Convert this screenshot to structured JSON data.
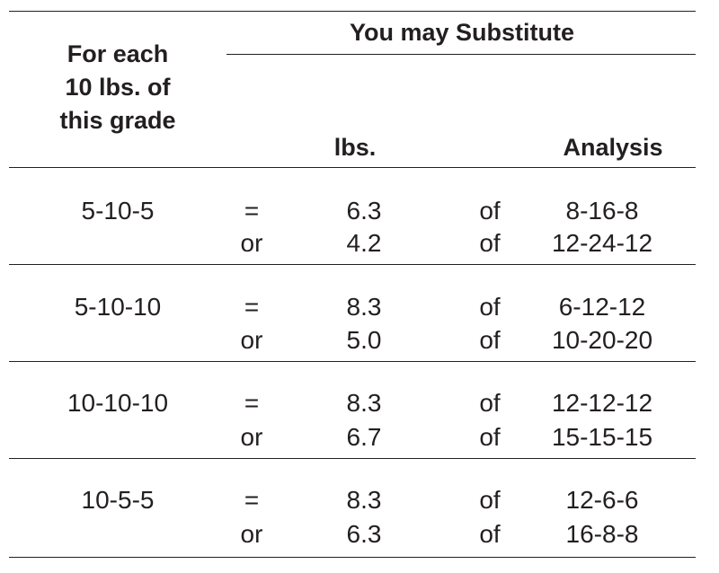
{
  "header": {
    "left_lines": [
      "For each",
      "10 lbs. of",
      "this grade"
    ],
    "substitute": "You may Substitute",
    "lbs": "lbs.",
    "analysis": "Analysis"
  },
  "rows": [
    {
      "grade": "5-10-5",
      "subs": [
        {
          "op": "=",
          "lbs": "6.3",
          "of": "of",
          "analysis": "8-16-8"
        },
        {
          "op": "or",
          "lbs": "4.2",
          "of": "of",
          "analysis": "12-24-12"
        }
      ]
    },
    {
      "grade": "5-10-10",
      "subs": [
        {
          "op": "=",
          "lbs": "8.3",
          "of": "of",
          "analysis": "6-12-12"
        },
        {
          "op": "or",
          "lbs": "5.0",
          "of": "of",
          "analysis": "10-20-20"
        }
      ]
    },
    {
      "grade": "10-10-10",
      "subs": [
        {
          "op": "=",
          "lbs": "8.3",
          "of": "of",
          "analysis": "12-12-12"
        },
        {
          "op": "or",
          "lbs": "6.7",
          "of": "of",
          "analysis": "15-15-15"
        }
      ]
    },
    {
      "grade": "10-5-5",
      "subs": [
        {
          "op": "=",
          "lbs": "8.3",
          "of": "of",
          "analysis": "12-6-6"
        },
        {
          "op": "or",
          "lbs": "6.3",
          "of": "of",
          "analysis": "16-8-8"
        }
      ]
    }
  ]
}
